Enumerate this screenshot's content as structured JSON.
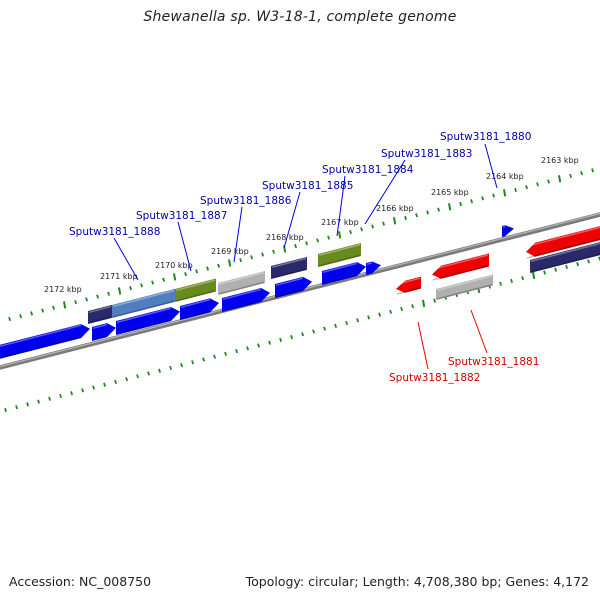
{
  "title": "Shewanella sp. W3-18-1, complete genome",
  "footer": {
    "accession": "Accession: NC_008750",
    "topology": "Topology: circular; Length: 4,708,380 bp; Genes: 4,172"
  },
  "colors": {
    "forward_gene": "#0000ee",
    "reverse_gene": "#ee0000",
    "forward_label": "#0000aa",
    "reverse_label": "#cc0000",
    "gc_track": "#2a2a6a",
    "tick": "#1e8a1e",
    "backbone": "#808080",
    "olive": "#6b8a1e",
    "grey_feature": "#b0b0b0"
  },
  "scale_labels": [
    "2163 kbp",
    "2164 kbp",
    "2165 kbp",
    "2166 kbp",
    "2167 kbp",
    "2168 kbp",
    "2169 kbp",
    "2170 kbp",
    "2171 kbp",
    "2172 kbp"
  ],
  "forward_labels": [
    "Sputw3181_1880",
    "Sputw3181_1883",
    "Sputw3181_1884",
    "Sputw3181_1885",
    "Sputw3181_1886",
    "Sputw3181_1887",
    "Sputw3181_1888"
  ],
  "reverse_labels": [
    "Sputw3181_1881",
    "Sputw3181_1882"
  ]
}
